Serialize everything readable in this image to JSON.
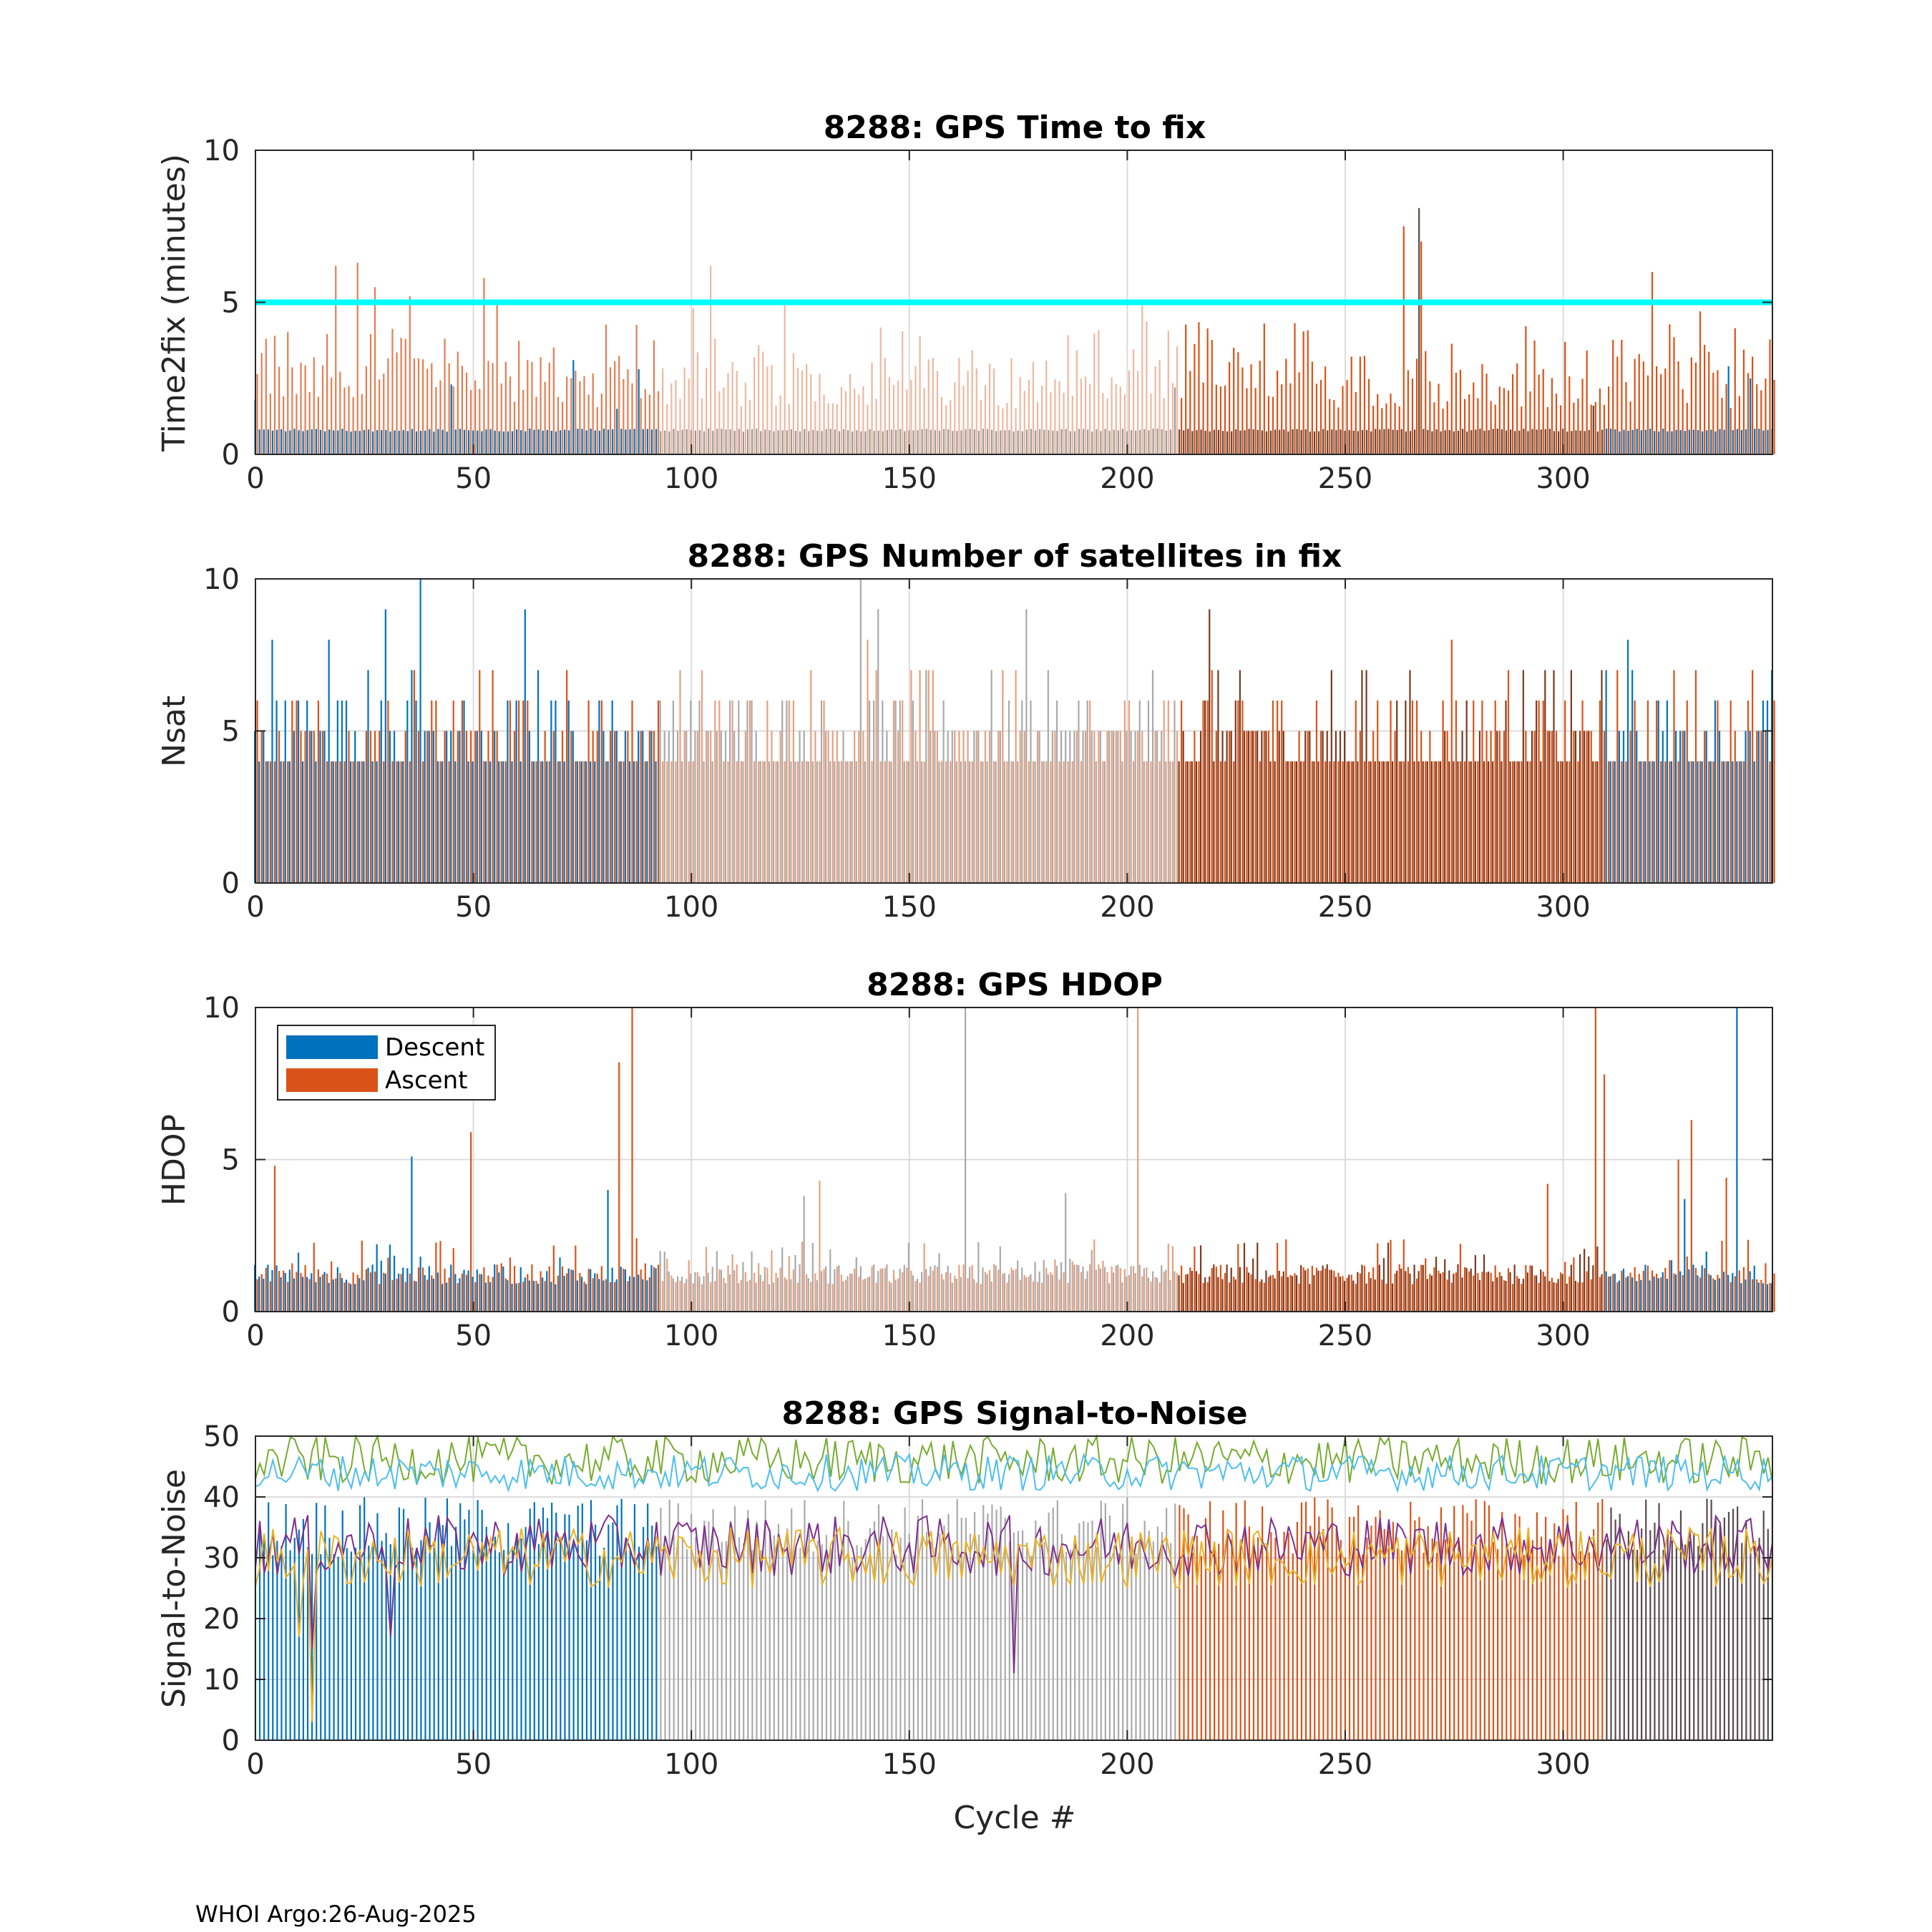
{
  "footer": "WHOI Argo:26-Aug-2025",
  "legend": {
    "descent": "Descent",
    "ascent": "Ascent"
  },
  "colors": {
    "descent": "#0072BD",
    "ascent": "#D95319",
    "light_gray": "#aaaaaa",
    "threshold": "#00FFFF",
    "grid": "#dcdcdc",
    "snr_lines": [
      "#77AC30",
      "#4DBEEE",
      "#7E2F8E",
      "#EDB120"
    ]
  },
  "chart_data": [
    {
      "type": "bar",
      "id": "time2fix",
      "title": "8288: GPS Time to fix",
      "xlabel": "",
      "ylabel": "Time2fix (minutes)",
      "xlim": [
        0,
        348
      ],
      "ylim": [
        0,
        10
      ],
      "xticks": [
        0,
        50,
        100,
        150,
        200,
        250,
        300
      ],
      "yticks": [
        0,
        5,
        10
      ],
      "threshold_line": 5,
      "descent_baseline": 0.8,
      "descent_spikes": [
        [
          0,
          1.8
        ],
        [
          45,
          2.3
        ],
        [
          73,
          3.1
        ],
        [
          83,
          1.5
        ],
        [
          88,
          2.8
        ],
        [
          211,
          2.2
        ],
        [
          267,
          8.1
        ],
        [
          307,
          1.6
        ],
        [
          338,
          2.9
        ],
        [
          343,
          2.5
        ]
      ],
      "ascent_peaks": [
        [
          2,
          3.8
        ],
        [
          18,
          6.2
        ],
        [
          23,
          6.3
        ],
        [
          27,
          5.5
        ],
        [
          35,
          5.2
        ],
        [
          52,
          5.8
        ],
        [
          55,
          4.9
        ],
        [
          100,
          4.8
        ],
        [
          104,
          6.2
        ],
        [
          121,
          4.9
        ],
        [
          203,
          4.9
        ],
        [
          263,
          7.5
        ],
        [
          267,
          7.0
        ],
        [
          320,
          6.0
        ],
        [
          331,
          4.7
        ]
      ],
      "ascent_typical_range": [
        1.5,
        4.4
      ],
      "gray_segment": [
        93,
        212
      ],
      "ascent_dark_segment": [
        212,
        348
      ]
    },
    {
      "type": "bar",
      "id": "nsat",
      "title": "8288: GPS Number of satellites in fix",
      "xlabel": "",
      "ylabel": "Nsat",
      "xlim": [
        0,
        348
      ],
      "ylim": [
        0,
        10
      ],
      "xticks": [
        0,
        50,
        100,
        150,
        200,
        250,
        300
      ],
      "yticks": [
        0,
        5,
        10
      ],
      "descent_peaks": [
        [
          38,
          10
        ],
        [
          30,
          9
        ],
        [
          62,
          9
        ],
        [
          139,
          10
        ],
        [
          143,
          9
        ],
        [
          177,
          9
        ],
        [
          219,
          9
        ],
        [
          315,
          8
        ],
        [
          4,
          8
        ],
        [
          17,
          8
        ]
      ],
      "ascent_peaks": [
        [
          274,
          8
        ],
        [
          140,
          8
        ],
        [
          219,
          7
        ]
      ],
      "typical_range": [
        4,
        7
      ],
      "gray_segment": [
        93,
        212
      ],
      "ascent_dark_segment": [
        212,
        348
      ]
    },
    {
      "type": "bar",
      "id": "hdop",
      "title": "8288: GPS HDOP",
      "xlabel": "",
      "ylabel": "HDOP",
      "xlim": [
        0,
        348
      ],
      "ylim": [
        0,
        10
      ],
      "xticks": [
        0,
        50,
        100,
        150,
        200,
        250,
        300
      ],
      "yticks": [
        0,
        5,
        10
      ],
      "descent_peaks": [
        [
          36,
          5.1
        ],
        [
          163,
          10
        ],
        [
          340,
          10
        ],
        [
          81,
          4.0
        ],
        [
          126,
          3.8
        ],
        [
          186,
          3.9
        ],
        [
          328,
          3.7
        ]
      ],
      "ascent_peaks": [
        [
          4,
          4.8
        ],
        [
          49,
          5.9
        ],
        [
          83,
          8.2
        ],
        [
          86,
          10
        ],
        [
          129,
          4.3
        ],
        [
          202,
          10
        ],
        [
          296,
          4.2
        ],
        [
          307,
          10
        ],
        [
          309,
          7.8
        ],
        [
          326,
          5.0
        ],
        [
          329,
          6.3
        ],
        [
          337,
          4.4
        ]
      ],
      "typical_range": [
        0.9,
        2.0
      ],
      "gray_segment": [
        93,
        212
      ],
      "ascent_dark_segment": [
        212,
        348
      ]
    },
    {
      "type": "bar+line",
      "id": "snr",
      "title": "8288: GPS Signal-to-Noise",
      "xlabel": "Cycle #",
      "ylabel": "Signal-to-Noise",
      "xlim": [
        0,
        348
      ],
      "ylim": [
        0,
        50
      ],
      "xticks": [
        0,
        50,
        100,
        150,
        200,
        250,
        300
      ],
      "yticks": [
        0,
        10,
        20,
        30,
        40,
        50
      ],
      "bar_level_range": [
        30,
        40
      ],
      "series": [
        {
          "name": "line1",
          "color": "#77AC30",
          "mean": 46,
          "spread": 4
        },
        {
          "name": "line2",
          "color": "#4DBEEE",
          "mean": 44,
          "spread": 3
        },
        {
          "name": "line3",
          "color": "#7E2F8E",
          "mean": 32,
          "spread": 5,
          "dips": [
            [
              13,
              15
            ],
            [
              31,
              17
            ],
            [
              174,
              11
            ]
          ]
        },
        {
          "name": "line4",
          "color": "#EDB120",
          "mean": 30,
          "spread": 5,
          "dips": [
            [
              10,
              17
            ],
            [
              13,
              3
            ]
          ]
        }
      ],
      "gray_segment": [
        93,
        212
      ],
      "ascent_dark_segment": [
        212,
        348
      ]
    }
  ]
}
